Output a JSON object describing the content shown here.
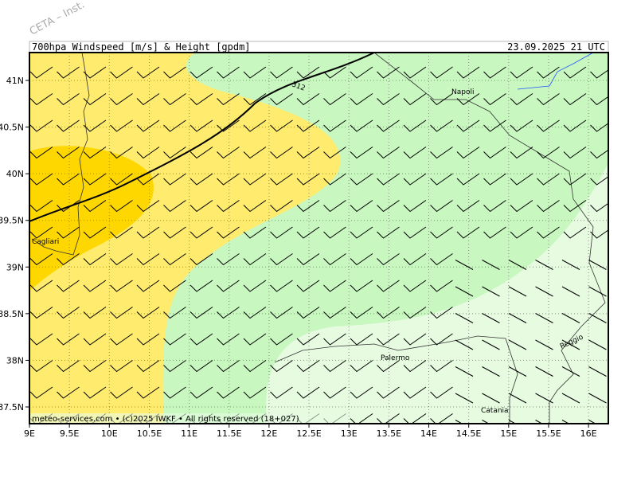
{
  "watermark": "CETA – Inst.",
  "header": {
    "title": "700hpa_Windspeed_[m/s]_&_Height_[gpdm]",
    "time": "23.09.2025 21 UTC"
  },
  "axes": {
    "lat_labels": [
      "41N",
      "40.5N",
      "40N",
      "39.5N",
      "39N",
      "38.5N",
      "38N",
      "37.5N"
    ],
    "lon_labels": [
      "9E",
      "9.5E",
      "10E",
      "10.5E",
      "11E",
      "11.5E",
      "12E",
      "12.5E",
      "13E",
      "13.5E",
      "14E",
      "14.5E",
      "15E",
      "15.5E",
      "16E"
    ]
  },
  "places": [
    "Napoli",
    "Cagliari",
    "Palermo",
    "Catania",
    "Reggio"
  ],
  "contour_label": "312",
  "footer": "meteo-services.com • (c)2025 IWKF • All rights reserved (18+027)"
}
